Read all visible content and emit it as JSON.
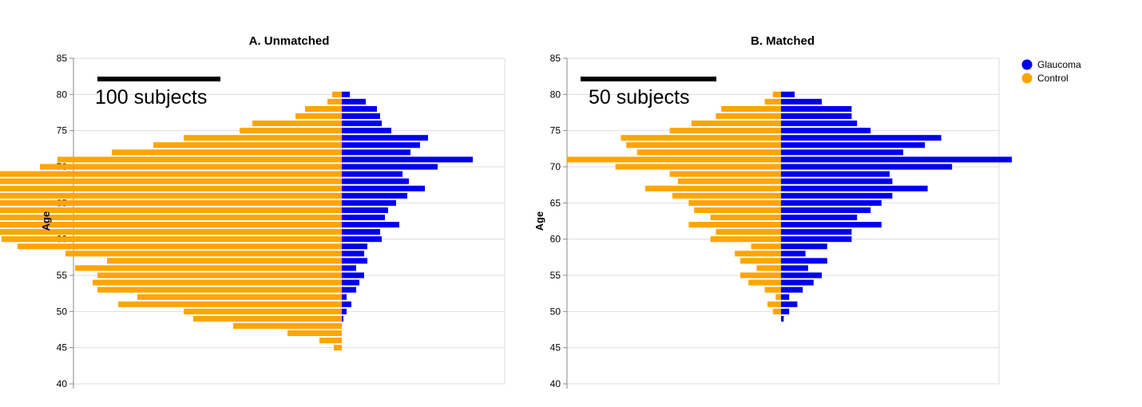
{
  "chart_data": [
    {
      "type": "bar",
      "orientation": "horizontal-stacked",
      "title": "A. Unmatched",
      "ylabel": "Age",
      "ylim": [
        40,
        85
      ],
      "yticks": [
        "40",
        "45",
        "50",
        "55",
        "60",
        "65",
        "70",
        "75",
        "80",
        "85"
      ],
      "grid": true,
      "scale_bar": {
        "label": "100 subjects",
        "value": 100
      },
      "series": [
        {
          "name": "Control",
          "color": "#FFA500"
        },
        {
          "name": "Glaucoma",
          "color": "#0000EE"
        }
      ],
      "rows": [
        {
          "age": 80,
          "control": 6,
          "glaucoma": 5
        },
        {
          "age": 79,
          "control": 9,
          "glaucoma": 15
        },
        {
          "age": 78,
          "control": 23,
          "glaucoma": 22
        },
        {
          "age": 77,
          "control": 29,
          "glaucoma": 24
        },
        {
          "age": 76,
          "control": 56,
          "glaucoma": 25
        },
        {
          "age": 75,
          "control": 64,
          "glaucoma": 31
        },
        {
          "age": 74,
          "control": 99,
          "glaucoma": 54
        },
        {
          "age": 73,
          "control": 118,
          "glaucoma": 49
        },
        {
          "age": 72,
          "control": 144,
          "glaucoma": 43
        },
        {
          "age": 71,
          "control": 178,
          "glaucoma": 82
        },
        {
          "age": 70,
          "control": 189,
          "glaucoma": 60
        },
        {
          "age": 69,
          "control": 264,
          "glaucoma": 38
        },
        {
          "age": 68,
          "control": 233,
          "glaucoma": 42
        },
        {
          "age": 67,
          "control": 273,
          "glaucoma": 52
        },
        {
          "age": 66,
          "control": 264,
          "glaucoma": 41
        },
        {
          "age": 65,
          "control": 248,
          "glaucoma": 34
        },
        {
          "age": 64,
          "control": 245,
          "glaucoma": 29
        },
        {
          "age": 63,
          "control": 225,
          "glaucoma": 27
        },
        {
          "age": 62,
          "control": 242,
          "glaucoma": 36
        },
        {
          "age": 61,
          "control": 220,
          "glaucoma": 24
        },
        {
          "age": 60,
          "control": 213,
          "glaucoma": 25
        },
        {
          "age": 59,
          "control": 203,
          "glaucoma": 16
        },
        {
          "age": 58,
          "control": 173,
          "glaucoma": 14
        },
        {
          "age": 57,
          "control": 147,
          "glaucoma": 16
        },
        {
          "age": 56,
          "control": 167,
          "glaucoma": 9
        },
        {
          "age": 55,
          "control": 153,
          "glaucoma": 14
        },
        {
          "age": 54,
          "control": 156,
          "glaucoma": 11
        },
        {
          "age": 53,
          "control": 153,
          "glaucoma": 9
        },
        {
          "age": 52,
          "control": 128,
          "glaucoma": 3
        },
        {
          "age": 51,
          "control": 140,
          "glaucoma": 6
        },
        {
          "age": 50,
          "control": 99,
          "glaucoma": 3
        },
        {
          "age": 49,
          "control": 93,
          "glaucoma": 1
        },
        {
          "age": 48,
          "control": 68,
          "glaucoma": 0
        },
        {
          "age": 47,
          "control": 34,
          "glaucoma": 0
        },
        {
          "age": 46,
          "control": 14,
          "glaucoma": 0
        },
        {
          "age": 45,
          "control": 5,
          "glaucoma": 0
        }
      ]
    },
    {
      "type": "bar",
      "orientation": "horizontal-stacked",
      "title": "B. Matched",
      "ylabel": "Age",
      "ylim": [
        40,
        85
      ],
      "yticks": [
        "40",
        "45",
        "50",
        "55",
        "60",
        "65",
        "70",
        "75",
        "80",
        "85"
      ],
      "grid": true,
      "scale_bar": {
        "label": "50 subjects",
        "value": 50
      },
      "legend": {
        "position": "top-right",
        "items": [
          {
            "label": "Glaucoma",
            "color": "#0000EE"
          },
          {
            "label": "Control",
            "color": "#FFA500"
          }
        ]
      },
      "series": [
        {
          "name": "Control",
          "color": "#FFA500"
        },
        {
          "name": "Glaucoma",
          "color": "#0000EE"
        }
      ],
      "rows": [
        {
          "age": 80,
          "control": 3,
          "glaucoma": 5
        },
        {
          "age": 79,
          "control": 6,
          "glaucoma": 15
        },
        {
          "age": 78,
          "control": 22,
          "glaucoma": 26
        },
        {
          "age": 77,
          "control": 24,
          "glaucoma": 26
        },
        {
          "age": 76,
          "control": 33,
          "glaucoma": 28
        },
        {
          "age": 75,
          "control": 41,
          "glaucoma": 33
        },
        {
          "age": 74,
          "control": 59,
          "glaucoma": 59
        },
        {
          "age": 73,
          "control": 57,
          "glaucoma": 53
        },
        {
          "age": 72,
          "control": 53,
          "glaucoma": 45
        },
        {
          "age": 71,
          "control": 79,
          "glaucoma": 85
        },
        {
          "age": 70,
          "control": 61,
          "glaucoma": 63
        },
        {
          "age": 69,
          "control": 41,
          "glaucoma": 40
        },
        {
          "age": 68,
          "control": 38,
          "glaucoma": 41
        },
        {
          "age": 67,
          "control": 50,
          "glaucoma": 54
        },
        {
          "age": 66,
          "control": 40,
          "glaucoma": 41
        },
        {
          "age": 65,
          "control": 34,
          "glaucoma": 37
        },
        {
          "age": 64,
          "control": 32,
          "glaucoma": 33
        },
        {
          "age": 63,
          "control": 26,
          "glaucoma": 28
        },
        {
          "age": 62,
          "control": 34,
          "glaucoma": 37
        },
        {
          "age": 61,
          "control": 24,
          "glaucoma": 26
        },
        {
          "age": 60,
          "control": 26,
          "glaucoma": 26
        },
        {
          "age": 59,
          "control": 11,
          "glaucoma": 17
        },
        {
          "age": 58,
          "control": 17,
          "glaucoma": 9
        },
        {
          "age": 57,
          "control": 15,
          "glaucoma": 17
        },
        {
          "age": 56,
          "control": 9,
          "glaucoma": 10
        },
        {
          "age": 55,
          "control": 15,
          "glaucoma": 15
        },
        {
          "age": 54,
          "control": 12,
          "glaucoma": 12
        },
        {
          "age": 53,
          "control": 6,
          "glaucoma": 8
        },
        {
          "age": 52,
          "control": 2,
          "glaucoma": 3
        },
        {
          "age": 51,
          "control": 5,
          "glaucoma": 6
        },
        {
          "age": 50,
          "control": 3,
          "glaucoma": 3
        },
        {
          "age": 49,
          "control": 0,
          "glaucoma": 1
        }
      ]
    }
  ]
}
